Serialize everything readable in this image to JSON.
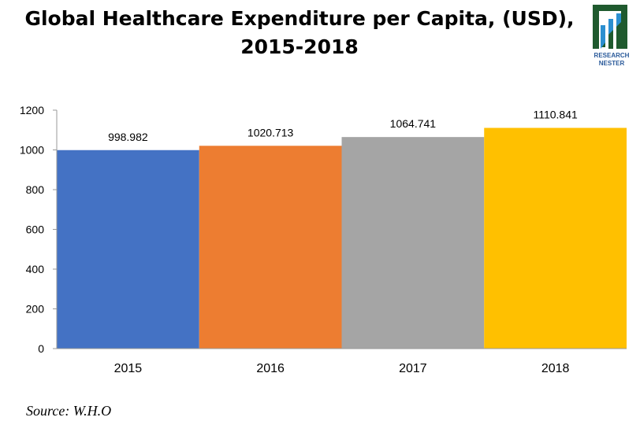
{
  "chart_data": {
    "type": "bar",
    "title_line1": "Global Healthcare Expenditure per Capita, (USD),",
    "title_line2": "2015-2018",
    "categories": [
      "2015",
      "2016",
      "2017",
      "2018"
    ],
    "values": [
      998.982,
      1020.713,
      1064.741,
      1110.841
    ],
    "data_labels": [
      "998.982",
      "1020.713",
      "1064.741",
      "1110.841"
    ],
    "colors": [
      "#4472C4",
      "#ED7D31",
      "#A5A5A5",
      "#FFC000"
    ],
    "ylim": [
      0,
      1200
    ],
    "yticks": [
      "0",
      "200",
      "400",
      "600",
      "800",
      "1000",
      "1200"
    ],
    "grid": false,
    "legend": "none"
  },
  "source": "Source: W.H.O",
  "logo": {
    "line1": "RESEARCH",
    "line2": "NESTER"
  }
}
